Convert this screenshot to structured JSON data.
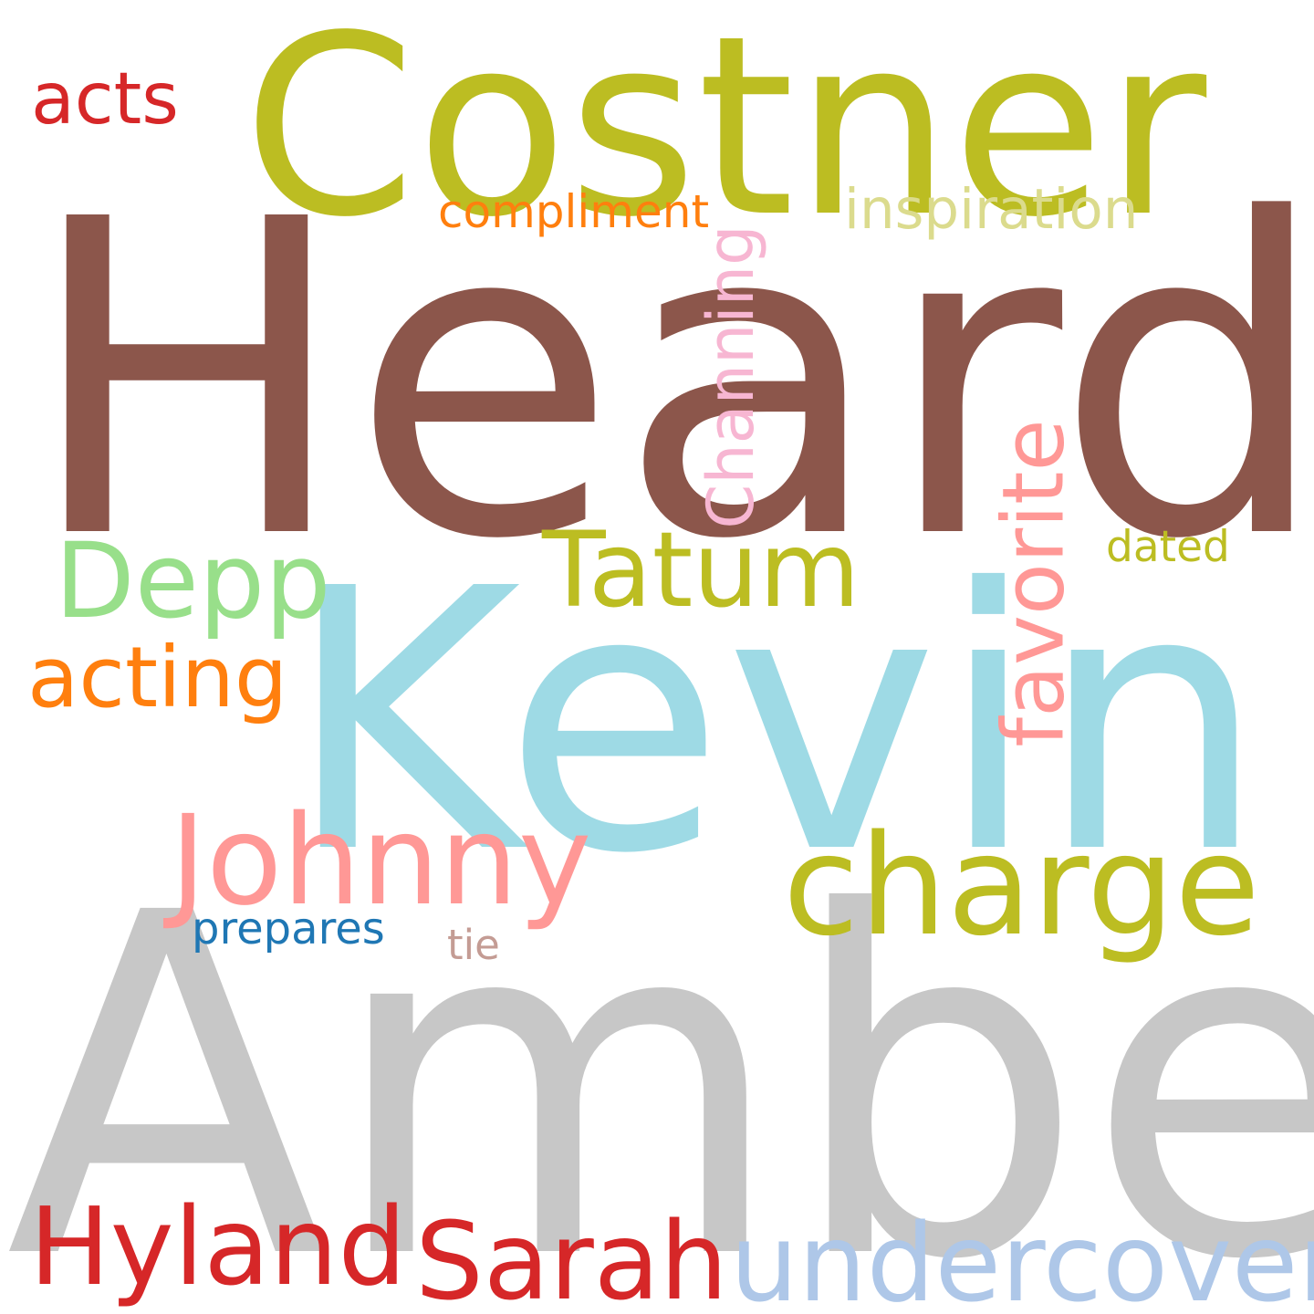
{
  "words": [
    {
      "text": "Heard",
      "color": "#8c564b"
    },
    {
      "text": "Amber",
      "color": "#c7c7c7"
    },
    {
      "text": "Kevin",
      "color": "#9edae5"
    },
    {
      "text": "Costner",
      "color": "#bcbd22"
    },
    {
      "text": "charge",
      "color": "#bcbd22"
    },
    {
      "text": "Johnny",
      "color": "#ff9896"
    },
    {
      "text": "Depp",
      "color": "#98df8a"
    },
    {
      "text": "Tatum",
      "color": "#bcbd22"
    },
    {
      "text": "Channing",
      "color": "#f7b6d2"
    },
    {
      "text": "favorite",
      "color": "#ff9896"
    },
    {
      "text": "undercover",
      "color": "#aec7e8"
    },
    {
      "text": "Sarah",
      "color": "#d62728"
    },
    {
      "text": "Hyland",
      "color": "#d62728"
    },
    {
      "text": "acting",
      "color": "#ff7f0e"
    },
    {
      "text": "acts",
      "color": "#d62728"
    },
    {
      "text": "inspiration",
      "color": "#dbdb8d"
    },
    {
      "text": "compliment",
      "color": "#ff7f0e"
    },
    {
      "text": "dated",
      "color": "#bcbd22"
    },
    {
      "text": "prepares",
      "color": "#1f77b4"
    },
    {
      "text": "tie",
      "color": "#c49c94"
    }
  ]
}
